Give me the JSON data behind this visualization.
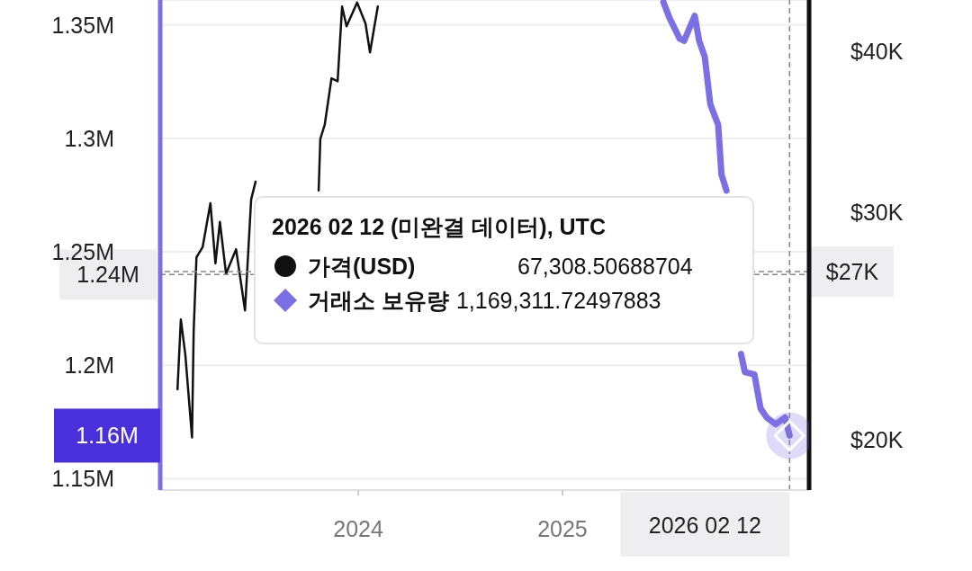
{
  "chart_data": {
    "type": "line",
    "legend_title": "2026 02 12 (미완결 데이터), UTC",
    "legend": "center",
    "grid": "y",
    "xlim": [
      "2023-01-11",
      "2026-03-19"
    ],
    "xticks": [
      "2024",
      "2025"
    ],
    "ylim": [
      1145000,
      1361000
    ],
    "yticks": [
      {
        "value": 1150000,
        "label": "1.15M"
      },
      {
        "value": 1200000,
        "label": "1.2M"
      },
      {
        "value": 1250000,
        "label": "1.25M"
      },
      {
        "value": 1300000,
        "label": "1.3M"
      },
      {
        "value": 1350000,
        "label": "1.35M"
      }
    ],
    "y2lim": [
      18300,
      43800
    ],
    "y2ticks": [
      {
        "value": 20000,
        "label": "$20K"
      },
      {
        "value": 30000,
        "label": "$30K"
      },
      {
        "value": 40000,
        "label": "$40K"
      }
    ],
    "log": "y2",
    "series": [
      {
        "name": "가격(USD)",
        "color": "#111111",
        "axis": "y2",
        "x": [
          "2023-02-11",
          "2023-02-17",
          "2023-02-25",
          "2023-03-09",
          "2023-03-12",
          "2023-03-17",
          "2023-03-28",
          "2023-04-11",
          "2023-04-20",
          "2023-04-28",
          "2023-05-09",
          "2023-05-27",
          "2023-06-12",
          "2023-06-23",
          "2023-07-01",
          "2023-08-20",
          "2023-10-22",
          "2023-10-25",
          "2023-11-02",
          "2023-11-14",
          "2023-11-25",
          "2023-12-03",
          "2023-12-11",
          "2023-12-30",
          "2024-01-14",
          "2024-01-22",
          "2024-02-05"
        ],
        "values": [
          21900,
          24800,
          23300,
          20100,
          24300,
          27700,
          28200,
          30500,
          27400,
          29500,
          26900,
          28100,
          25200,
          30700,
          31700,
          null,
          31200,
          34200,
          35100,
          38100,
          37900,
          43300,
          41800,
          43600,
          42000,
          39900,
          43300
        ]
      },
      {
        "name": "거래소 보유량",
        "color": "#7b6fe6",
        "axis": "y",
        "x": [
          "2025-07-01",
          "2025-07-12",
          "2025-07-30",
          "2025-08-07",
          "2025-08-26",
          "2025-09-03",
          "2025-09-13",
          "2025-09-23",
          "2025-10-07",
          "2025-10-13",
          "2025-10-22",
          "2025-11-05",
          "2025-11-17",
          "2025-11-24",
          "2025-12-11",
          "2025-12-22",
          "2026-01-02",
          "2026-01-18",
          "2026-02-04",
          "2026-02-12"
        ],
        "values": [
          1360000,
          1353000,
          1344000,
          1343000,
          1354000,
          1343000,
          1336000,
          1315000,
          1306000,
          1284000,
          1277000,
          null,
          1205000,
          1197000,
          1196000,
          1181000,
          1177000,
          1174000,
          1177000,
          1169000
        ]
      }
    ],
    "ref_lines": [
      {
        "axis": "x",
        "value": "2026-02-12",
        "label": "2026 02 12",
        "color": "#888888",
        "line_style": "dashed"
      },
      {
        "axis": "y",
        "value": 1240000,
        "label": "1.24M",
        "color": "#888888",
        "line_style": "dashed"
      },
      {
        "axis": "y2",
        "value": 27000,
        "label": "$27K",
        "color": "#888888",
        "line_style": "dashed"
      }
    ],
    "annotations": [
      "67,308.50688704",
      "1,169,311.72497883",
      "1.16M"
    ]
  }
}
